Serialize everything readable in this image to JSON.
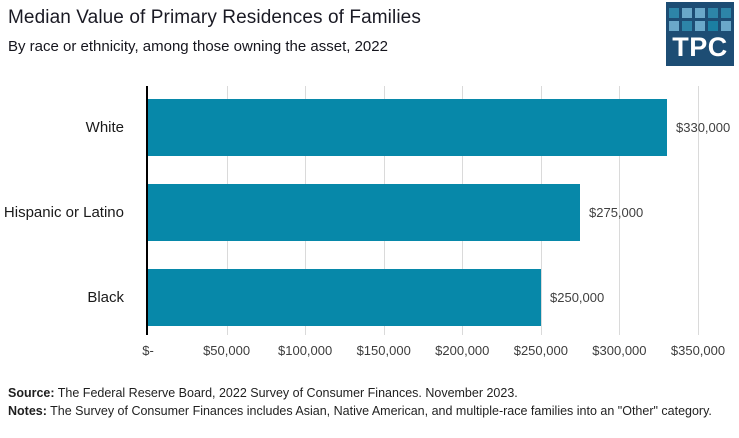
{
  "header": {
    "title": "Median Value of Primary Residences of Families",
    "subtitle": "By race or ethnicity, among those owning the asset, 2022"
  },
  "logo": {
    "text": "TPC",
    "background": "#1d4d74",
    "square_colors": [
      "#2d85a8",
      "#6aa8c9",
      "#6aa8c9",
      "#2d85a8",
      "#2d85a8",
      "#6aa8c9",
      "#2d85a8",
      "#6aa8c9",
      "#1b7fa2",
      "#6aa8c9"
    ]
  },
  "chart_data": {
    "type": "bar",
    "orientation": "horizontal",
    "title": "Median Value of Primary Residences of Families",
    "subtitle": "By race or ethnicity, among those owning the asset, 2022",
    "categories": [
      "White",
      "Hispanic or Latino",
      "Black"
    ],
    "values": [
      330000,
      275000,
      250000
    ],
    "value_labels": [
      "$330,000",
      "$275,000",
      "$250,000"
    ],
    "xlim": [
      0,
      350000
    ],
    "x_ticks": [
      0,
      50000,
      100000,
      150000,
      200000,
      250000,
      300000,
      350000
    ],
    "x_tick_labels": [
      "$-",
      "$50,000",
      "$100,000",
      "$150,000",
      "$200,000",
      "$250,000",
      "$300,000",
      "$350,000"
    ],
    "bar_color": "#0788a9",
    "gridline_color": "#dadada",
    "axis_color": "#000000",
    "grid": true,
    "legend": false
  },
  "footer": {
    "source_label": "Source:",
    "source_text": " The Federal Reserve Board, 2022 Survey of Consumer Finances. November 2023.",
    "notes_label": "Notes:",
    "notes_text": " The Survey of Consumer Finances includes Asian, Native American, and multiple-race families into an \"Other\" category."
  }
}
